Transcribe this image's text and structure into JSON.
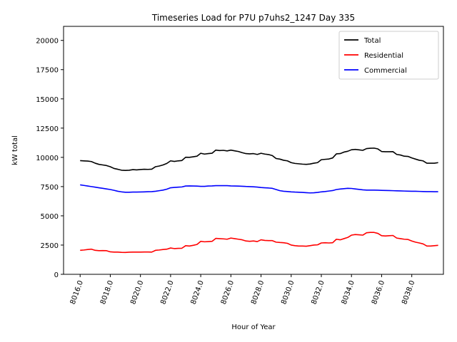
{
  "chart_data": {
    "type": "line",
    "title": "Timeseries Load for P7U p7uhs2_1247  Day 335",
    "xlabel": "Hour of Year",
    "ylabel": "kW total",
    "xlim": [
      8014.9,
      8040.1
    ],
    "ylim": [
      0,
      21200
    ],
    "xticks": [
      8016,
      8018,
      8020,
      8022,
      8024,
      8026,
      8028,
      8030,
      8032,
      8034,
      8036,
      8038
    ],
    "xtick_labels": [
      "8016.0",
      "8018.0",
      "8020.0",
      "8022.0",
      "8024.0",
      "8026.0",
      "8028.0",
      "8030.0",
      "8032.0",
      "8034.0",
      "8036.0",
      "8038.0"
    ],
    "yticks": [
      0,
      2500,
      5000,
      7500,
      10000,
      12500,
      15000,
      17500,
      20000
    ],
    "ytick_labels": [
      "0",
      "2500",
      "5000",
      "7500",
      "10000",
      "12500",
      "15000",
      "17500",
      "20000"
    ],
    "legend_position": "top-right",
    "grid": false,
    "x": [
      8016.0,
      8016.25,
      8016.5,
      8016.75,
      8017.0,
      8017.25,
      8017.5,
      8017.75,
      8018.0,
      8018.25,
      8018.5,
      8018.75,
      8019.0,
      8019.25,
      8019.5,
      8019.75,
      8020.0,
      8020.25,
      8020.5,
      8020.75,
      8021.0,
      8021.25,
      8021.5,
      8021.75,
      8022.0,
      8022.25,
      8022.5,
      8022.75,
      8023.0,
      8023.25,
      8023.5,
      8023.75,
      8024.0,
      8024.25,
      8024.5,
      8024.75,
      8025.0,
      8025.25,
      8025.5,
      8025.75,
      8026.0,
      8026.25,
      8026.5,
      8026.75,
      8027.0,
      8027.25,
      8027.5,
      8027.75,
      8028.0,
      8028.25,
      8028.5,
      8028.75,
      8029.0,
      8029.25,
      8029.5,
      8029.75,
      8030.0,
      8030.25,
      8030.5,
      8030.75,
      8031.0,
      8031.25,
      8031.5,
      8031.75,
      8032.0,
      8032.25,
      8032.5,
      8032.75,
      8033.0,
      8033.25,
      8033.5,
      8033.75,
      8034.0,
      8034.25,
      8034.5,
      8034.75,
      8035.0,
      8035.25,
      8035.5,
      8035.75,
      8036.0,
      8036.25,
      8036.5,
      8036.75,
      8037.0,
      8037.25,
      8037.5,
      8037.75,
      8038.0,
      8038.25,
      8038.5,
      8038.75,
      8039.0,
      8039.25,
      8039.5,
      8039.75
    ],
    "series": [
      {
        "name": "Total",
        "color": "#000000",
        "values": [
          9720,
          9700,
          9680,
          9640,
          9500,
          9400,
          9350,
          9300,
          9200,
          9050,
          8980,
          8900,
          8880,
          8900,
          8950,
          8930,
          8960,
          8980,
          8970,
          8990,
          9200,
          9260,
          9350,
          9480,
          9700,
          9650,
          9700,
          9730,
          10010,
          10000,
          10050,
          10100,
          10350,
          10280,
          10320,
          10350,
          10620,
          10580,
          10600,
          10550,
          10620,
          10560,
          10500,
          10400,
          10320,
          10300,
          10320,
          10250,
          10350,
          10280,
          10240,
          10150,
          9900,
          9850,
          9750,
          9700,
          9550,
          9480,
          9450,
          9420,
          9400,
          9430,
          9500,
          9550,
          9800,
          9830,
          9860,
          9950,
          10300,
          10320,
          10450,
          10520,
          10650,
          10680,
          10640,
          10600,
          10750,
          10780,
          10790,
          10720,
          10500,
          10480,
          10480,
          10490,
          10250,
          10200,
          10100,
          10080,
          9950,
          9850,
          9750,
          9700,
          9500,
          9500,
          9500,
          9550
        ]
      },
      {
        "name": "Residential",
        "color": "#ff0000",
        "values": [
          2050,
          2080,
          2120,
          2150,
          2050,
          2020,
          2030,
          2020,
          1920,
          1900,
          1900,
          1880,
          1870,
          1890,
          1900,
          1900,
          1900,
          1910,
          1910,
          1900,
          2050,
          2080,
          2120,
          2150,
          2250,
          2200,
          2220,
          2230,
          2450,
          2420,
          2480,
          2550,
          2820,
          2780,
          2800,
          2820,
          3070,
          3050,
          3030,
          3000,
          3100,
          3050,
          3000,
          2950,
          2850,
          2820,
          2850,
          2800,
          2950,
          2900,
          2880,
          2880,
          2750,
          2720,
          2700,
          2650,
          2500,
          2450,
          2420,
          2420,
          2400,
          2450,
          2500,
          2520,
          2680,
          2700,
          2680,
          2700,
          3000,
          2950,
          3050,
          3150,
          3350,
          3400,
          3380,
          3350,
          3550,
          3580,
          3580,
          3500,
          3300,
          3280,
          3300,
          3320,
          3100,
          3050,
          3000,
          2980,
          2850,
          2750,
          2680,
          2600,
          2420,
          2420,
          2450,
          2480
        ]
      },
      {
        "name": "Commercial",
        "color": "#0000ff",
        "values": [
          7650,
          7600,
          7550,
          7500,
          7450,
          7400,
          7350,
          7300,
          7250,
          7180,
          7100,
          7050,
          7020,
          7020,
          7030,
          7030,
          7040,
          7050,
          7060,
          7070,
          7100,
          7150,
          7200,
          7280,
          7400,
          7430,
          7450,
          7470,
          7550,
          7560,
          7550,
          7540,
          7520,
          7520,
          7550,
          7560,
          7580,
          7580,
          7580,
          7580,
          7560,
          7550,
          7540,
          7530,
          7510,
          7500,
          7480,
          7460,
          7420,
          7400,
          7380,
          7350,
          7250,
          7150,
          7100,
          7080,
          7050,
          7030,
          7020,
          7000,
          6980,
          6960,
          6970,
          7000,
          7050,
          7080,
          7120,
          7160,
          7250,
          7290,
          7320,
          7350,
          7340,
          7300,
          7260,
          7220,
          7200,
          7200,
          7200,
          7190,
          7180,
          7170,
          7160,
          7150,
          7140,
          7130,
          7120,
          7110,
          7100,
          7100,
          7090,
          7080,
          7070,
          7070,
          7060,
          7060
        ]
      }
    ]
  }
}
